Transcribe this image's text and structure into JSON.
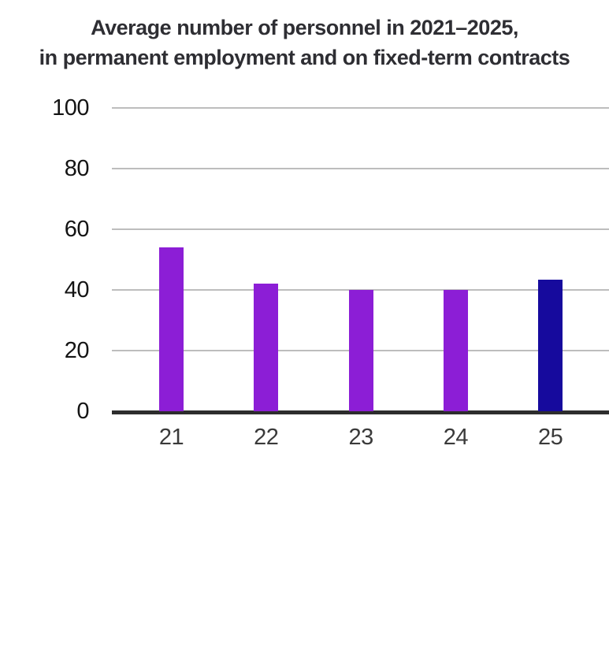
{
  "chart_data": {
    "type": "bar",
    "title": "Average number of personnel in 2021–2025, in permanent employment and on fixed-term contracts",
    "title_lines": [
      "Average number of personnel in 2021–2025,",
      "in permanent employment and on fixed-term contracts"
    ],
    "categories": [
      "21",
      "22",
      "23",
      "24",
      "25"
    ],
    "values": [
      54,
      42,
      40,
      40,
      43.5
    ],
    "bar_colors": [
      "#8C1ED6",
      "#8C1ED6",
      "#8C1ED6",
      "#8C1ED6",
      "#160A9D"
    ],
    "xlabel": "",
    "ylabel": "",
    "ylim": [
      0,
      100
    ],
    "yticks": [
      0,
      20,
      40,
      60,
      80,
      100
    ],
    "grid": true,
    "legend": "none",
    "colors": {
      "bar_purple": "#8C1ED6",
      "bar_navy_highlight": "#160A9D",
      "gridline": "#bdbdbd",
      "axis_line": "#2d2d2d",
      "title_text": "#2e2e33",
      "y_tick_text": "#141414",
      "x_tick_text": "#3a3a3a",
      "background": "#ffffff"
    }
  }
}
